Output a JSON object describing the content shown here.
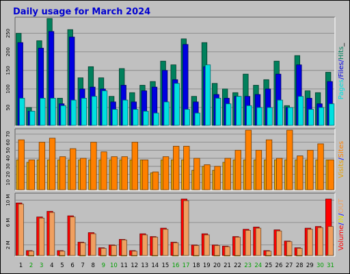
{
  "colors": {
    "background": "#c0c0c0",
    "panel": "#c0c0c0",
    "grid": "#808080",
    "title": "#0000d0",
    "hits": "#00805c",
    "files": "#0000e0",
    "pages": "#00e0e0",
    "visits": "#e8a000",
    "sites": "#ff8000",
    "volume": "#ff0000",
    "in": "#e0e000",
    "out": "#f0a060",
    "weekend_day": "#00a000",
    "weekday": "#000000",
    "sep_slash": "#0000ff",
    "sep_underscore": "#000000"
  },
  "chart_data": {
    "type": "bar",
    "title": "Daily usage for March 2024",
    "categories": [
      "1",
      "2",
      "3",
      "4",
      "5",
      "6",
      "7",
      "8",
      "9",
      "10",
      "11",
      "12",
      "13",
      "14",
      "15",
      "16",
      "17",
      "18",
      "19",
      "20",
      "21",
      "22",
      "23",
      "24",
      "25",
      "26",
      "27",
      "28",
      "29",
      "30",
      "31"
    ],
    "weekend_days": [
      "2",
      "3",
      "9",
      "10",
      "16",
      "17",
      "23",
      "24",
      "30",
      "31"
    ],
    "panels": [
      {
        "id": "hits",
        "ylim": [
          0,
          290
        ],
        "yticks": [
          "50",
          "100",
          "150",
          "200",
          "250"
        ],
        "ytick_values": [
          50,
          100,
          150,
          200,
          250
        ],
        "legend": [
          "Pages",
          "/",
          "Files",
          "/",
          "Hits",
          "_"
        ],
        "series": [
          {
            "name": "Hits",
            "values": [
              250,
              50,
              230,
              290,
              75,
              260,
              130,
              160,
              130,
              80,
              155,
              90,
              110,
              120,
              175,
              165,
              235,
              80,
              225,
              115,
              100,
              90,
              140,
              110,
              125,
              175,
              55,
              190,
              95,
              90,
              145
            ]
          },
          {
            "name": "Files",
            "values": [
              225,
              40,
              210,
              255,
              60,
              240,
              100,
              105,
              100,
              65,
              110,
              65,
              95,
              105,
              150,
              125,
              220,
              65,
              160,
              85,
              75,
              80,
              80,
              85,
              100,
              140,
              50,
              165,
              75,
              60,
              120
            ]
          },
          {
            "name": "Pages",
            "values": [
              75,
              40,
              75,
              75,
              55,
              70,
              75,
              80,
              95,
              45,
              70,
              45,
              40,
              35,
              65,
              115,
              45,
              35,
              165,
              75,
              60,
              80,
              55,
              50,
              50,
              70,
              50,
              80,
              45,
              50,
              60
            ]
          }
        ]
      },
      {
        "id": "visits",
        "ylim": [
          0,
          75
        ],
        "yticks": [
          "10",
          "20",
          "30",
          "40",
          "50",
          "60",
          "70"
        ],
        "ytick_values": [
          10,
          20,
          30,
          40,
          50,
          60,
          70
        ],
        "legend": [
          "Visits",
          "/",
          "Sites"
        ],
        "series": [
          {
            "name": "Visits",
            "values": [
              38,
              35,
              38,
              38,
              38,
              38,
              38,
              38,
              38,
              38,
              38,
              38,
              38,
              22,
              38,
              38,
              38,
              25,
              30,
              25,
              35,
              38,
              38,
              38,
              38,
              38,
              38,
              38,
              38,
              38,
              38
            ]
          },
          {
            "name": "Sites",
            "values": [
              63,
              38,
              60,
              65,
              42,
              52,
              40,
              60,
              48,
              42,
              42,
              60,
              38,
              23,
              42,
              55,
              55,
              40,
              32,
              30,
              40,
              50,
              75,
              50,
              63,
              40,
              75,
              43,
              50,
              58,
              38
            ]
          }
        ]
      },
      {
        "id": "volume",
        "ylim": [
          0,
          11
        ],
        "yticks": [
          "2 M",
          "6 M",
          "10 M"
        ],
        "ytick_values": [
          2,
          6,
          10
        ],
        "legend": [
          "Volume",
          "/",
          "IN",
          "/",
          "OUT"
        ],
        "series": [
          {
            "name": "Volume",
            "values": [
              9.5,
              1,
              7,
              8,
              1,
              7.2,
              2.5,
              4.2,
              1.5,
              2,
              3,
              1,
              4,
              3.5,
              5,
              2.5,
              10.2,
              2,
              4,
              2,
              1.8,
              3.5,
              4.8,
              5.2,
              1,
              4.7,
              2.7,
              1.5,
              5,
              5.3,
              10.2
            ]
          },
          {
            "name": "IN",
            "values": [
              0.2,
              0.1,
              0.2,
              0.2,
              0.1,
              0.2,
              0.1,
              0.2,
              0.1,
              0.1,
              0.1,
              0.1,
              0.2,
              0.1,
              0.2,
              0.1,
              0.3,
              0.1,
              0.2,
              0.1,
              0.1,
              0.1,
              0.2,
              0.2,
              0.1,
              0.2,
              0.1,
              0.1,
              0.2,
              0.2,
              0.3
            ]
          },
          {
            "name": "OUT",
            "values": [
              9.3,
              0.9,
              6.8,
              7.8,
              0.9,
              7,
              2.4,
              4,
              1.4,
              1.9,
              2.9,
              0.9,
              3.8,
              3.4,
              4.8,
              2.4,
              9.9,
              1.9,
              3.8,
              1.9,
              1.7,
              3.4,
              4.6,
              5,
              0.9,
              4.5,
              2.6,
              1.4,
              4.8,
              5.1,
              5.3
            ]
          }
        ]
      }
    ],
    "grid": true,
    "legend": "right"
  }
}
